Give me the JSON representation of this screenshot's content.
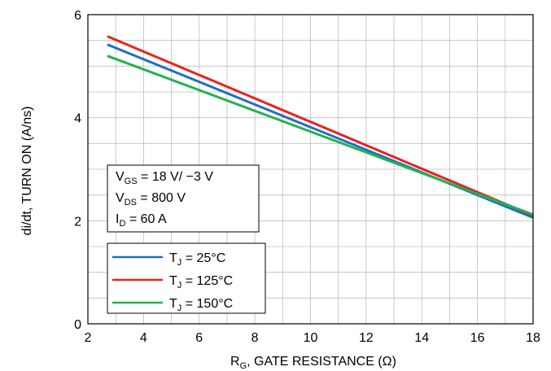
{
  "chart_data": {
    "type": "line",
    "title": "",
    "xlabel": {
      "main": "R",
      "sub": "G",
      "rest": ", GATE RESISTANCE (Ω)"
    },
    "ylabel": "di/dt, TURN ON (A/ns)",
    "xlim": [
      2,
      18
    ],
    "ylim": [
      0,
      6
    ],
    "xticks": [
      "2",
      "4",
      "6",
      "8",
      "10",
      "12",
      "14",
      "16",
      "18"
    ],
    "yticks": [
      "0",
      "2",
      "4",
      "6"
    ],
    "grid": true,
    "conditions": [
      {
        "main": "V",
        "sub": "GS",
        "rest": " =  18 V/ −3 V"
      },
      {
        "main": "V",
        "sub": "DS",
        "rest": " =  800 V"
      },
      {
        "main": "I",
        "sub": "D",
        "rest": " = 60 A"
      }
    ],
    "legend_position": "lower-left",
    "series": [
      {
        "name": {
          "main": "T",
          "sub": "J",
          "rest": " = 25°C"
        },
        "color": "#1f6fc5",
        "x": [
          2.7,
          18
        ],
        "y": [
          5.42,
          2.06
        ]
      },
      {
        "name": {
          "main": "T",
          "sub": "J",
          "rest": " = 125°C"
        },
        "color": "#e8231f",
        "x": [
          2.7,
          18
        ],
        "y": [
          5.58,
          2.1
        ]
      },
      {
        "name": {
          "main": "T",
          "sub": "J",
          "rest": " = 150°C"
        },
        "color": "#22b24c",
        "x": [
          2.7,
          18
        ],
        "y": [
          5.2,
          2.12
        ]
      }
    ]
  }
}
